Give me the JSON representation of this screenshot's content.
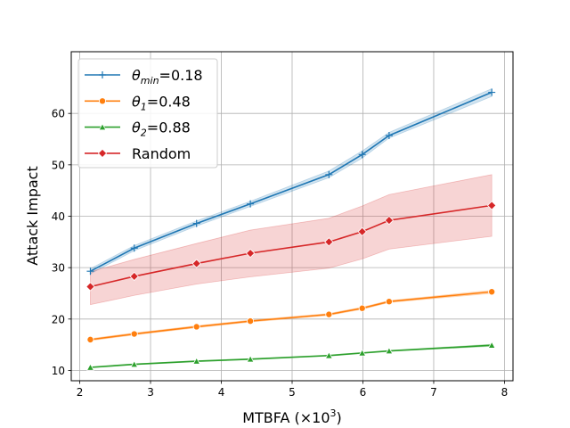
{
  "chart_data": {
    "type": "line",
    "title": "",
    "xlabel_base": "MTBFA (×10",
    "xlabel_exp": "3",
    "xlabel_close": ")",
    "ylabel": "Attack Impact",
    "xlim": [
      1.88,
      8.12
    ],
    "ylim": [
      8,
      72
    ],
    "x_ticks": [
      2,
      3,
      4,
      5,
      6,
      7,
      8
    ],
    "y_ticks": [
      10,
      20,
      30,
      40,
      50,
      60
    ],
    "grid": true,
    "legend_position": "top-left",
    "x": [
      2.15,
      2.77,
      3.65,
      4.41,
      5.52,
      5.99,
      6.37,
      7.82
    ],
    "series": [
      {
        "name": "θmin=0.18",
        "legend_symbol": "θ",
        "legend_sub": "min",
        "legend_value": "=0.18",
        "color": "#1f77b4",
        "marker": "plus",
        "values": [
          29.3,
          33.8,
          38.6,
          42.4,
          48.1,
          52.0,
          55.7,
          64.1
        ],
        "band_lower": [
          28.8,
          33.3,
          38.1,
          41.9,
          47.5,
          51.3,
          55.2,
          63.3
        ],
        "band_upper": [
          29.8,
          34.3,
          39.1,
          42.9,
          48.8,
          52.7,
          56.3,
          64.8
        ]
      },
      {
        "name": "θ1=0.48",
        "legend_symbol": "θ",
        "legend_sub": "1",
        "legend_value": "=0.48",
        "color": "#ff7f0e",
        "marker": "circle",
        "values": [
          16.0,
          17.1,
          18.5,
          19.6,
          20.9,
          22.1,
          23.4,
          25.3
        ],
        "band_lower": [
          15.8,
          16.9,
          18.3,
          19.4,
          20.7,
          21.9,
          23.2,
          25.0
        ],
        "band_upper": [
          16.2,
          17.3,
          18.7,
          19.8,
          21.1,
          22.3,
          23.6,
          25.6
        ]
      },
      {
        "name": "θ2=0.88",
        "legend_symbol": "θ",
        "legend_sub": "2",
        "legend_value": "=0.88",
        "color": "#2ca02c",
        "marker": "triangle",
        "values": [
          10.6,
          11.2,
          11.8,
          12.2,
          12.9,
          13.4,
          13.8,
          14.9
        ],
        "band_lower": [
          10.5,
          11.1,
          11.7,
          12.1,
          12.8,
          13.3,
          13.7,
          14.7
        ],
        "band_upper": [
          10.7,
          11.3,
          11.9,
          12.3,
          13.0,
          13.5,
          13.9,
          15.1
        ]
      },
      {
        "name": "Random",
        "legend_symbol": "",
        "legend_sub": "",
        "legend_value": "Random",
        "color": "#d62728",
        "marker": "diamond",
        "values": [
          26.3,
          28.3,
          30.8,
          32.8,
          35.0,
          37.0,
          39.2,
          42.1
        ],
        "band_lower": [
          22.8,
          24.6,
          26.8,
          28.2,
          29.9,
          31.7,
          33.6,
          36.1
        ],
        "band_upper": [
          29.2,
          31.6,
          34.7,
          37.3,
          39.6,
          42.0,
          44.2,
          48.1
        ]
      }
    ]
  }
}
